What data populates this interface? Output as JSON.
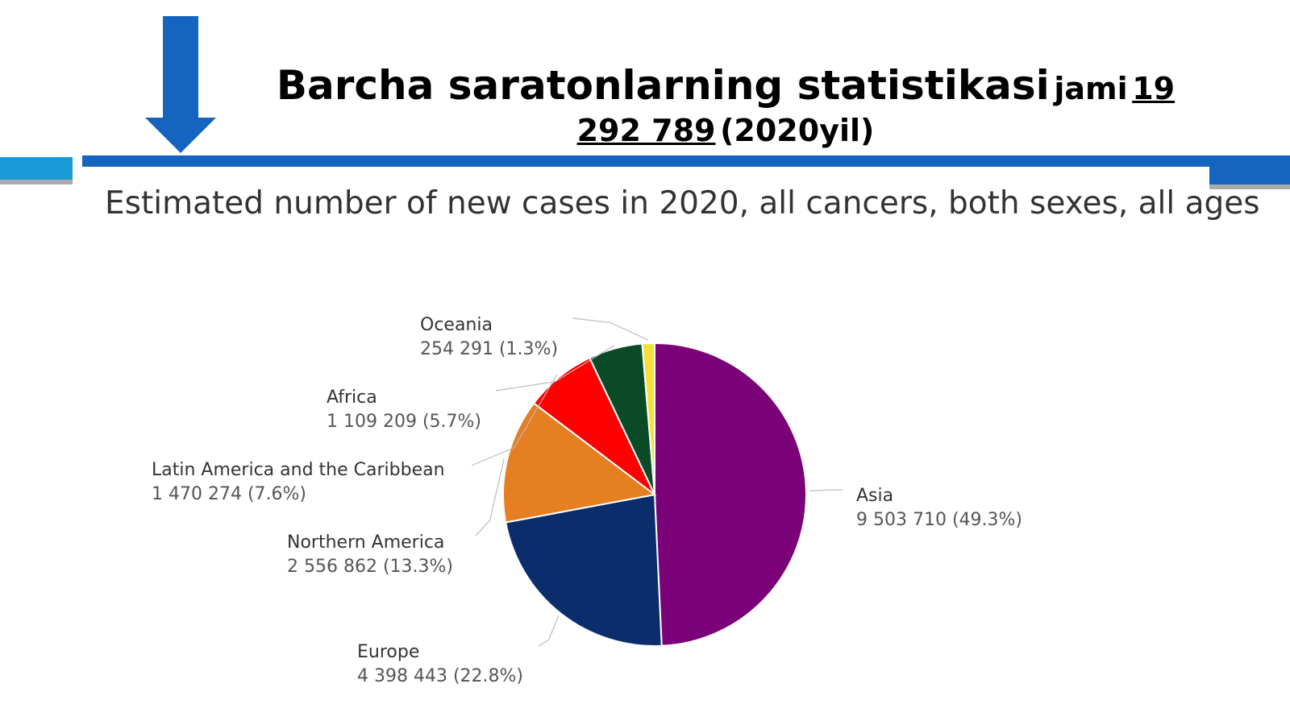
{
  "slide": {
    "title": "Barcha saratonlarning statistikasi",
    "title_prefix": "jami",
    "total": "19 292 789",
    "year": "(2020yil)"
  },
  "chart_data": {
    "type": "pie",
    "title": "Estimated number of new cases in 2020, all cancers, both sexes, all ages",
    "categories": [
      "Asia",
      "Europe",
      "Northern America",
      "Latin America and the Caribbean",
      "Africa",
      "Oceania"
    ],
    "values": [
      9503710,
      4398443,
      2556862,
      1470274,
      1109209,
      254291
    ],
    "value_labels": [
      "9 503 710 (49.3%)",
      "4 398 443 (22.8%)",
      "2 556 862 (13.3%)",
      "1 470 274 (7.6%)",
      "1 109 209 (5.7%)",
      "254 291 (1.3%)"
    ],
    "colors": [
      "#7a0177",
      "#0b2d6b",
      "#e67e22",
      "#ff0000",
      "#0a4a26",
      "#f5e03b"
    ]
  }
}
